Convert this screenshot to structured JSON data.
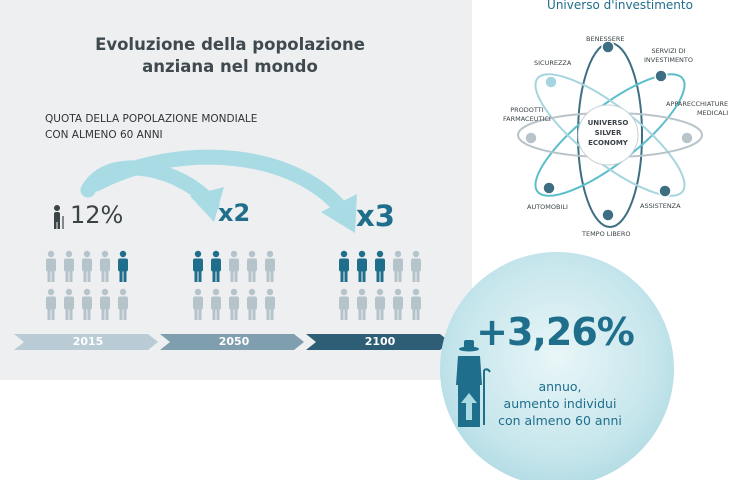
{
  "infographic": {
    "title_lines": [
      "Evoluzione della popolazione",
      "anziana nel mondo"
    ],
    "subtitle_lines": [
      "QUOTA DELLA POPOLAZIONE MONDIALE",
      "CON ALMENO 60 ANNI"
    ],
    "share_2015": "12%",
    "multiplier_2050": "x2",
    "multiplier_2100": "x3",
    "timeline": [
      "2015",
      "2050",
      "2100"
    ],
    "highlight_counts": [
      1,
      2,
      3
    ],
    "growth_value": "+3,26%",
    "growth_desc_lines": [
      "annuo,",
      "aumento individui",
      "con almeno 60 anni"
    ],
    "colors": {
      "panel": "#edeff0",
      "accent": "#1f6e8c",
      "light_figure": "#b5c3cb",
      "arrow": "#a8dbe4"
    }
  },
  "universe": {
    "title": "Universo d'investimento",
    "center_lines": [
      "UNIVERSO",
      "SILVER",
      "ECONOMY"
    ],
    "nodes": [
      {
        "lines": [
          "BENESSERE"
        ],
        "icon": "heart-icon"
      },
      {
        "lines": [
          "SERVIZI DI",
          "INVESTIMENTO"
        ],
        "icon": "money-icon"
      },
      {
        "lines": [
          "APPARECCHIATURE",
          "MEDICALI"
        ],
        "icon": "medical-device-icon"
      },
      {
        "lines": [
          "ASSISTENZA"
        ],
        "icon": "people-icon"
      },
      {
        "lines": [
          "TEMPO LIBERO"
        ],
        "icon": "leisure-icon"
      },
      {
        "lines": [
          "AUTOMOBILI"
        ],
        "icon": "car-icon"
      },
      {
        "lines": [
          "PRODOTTI",
          "FARMACEUTICI"
        ],
        "icon": "pill-icon"
      },
      {
        "lines": [
          "SICUREZZA"
        ],
        "icon": "shield-icon"
      }
    ]
  }
}
